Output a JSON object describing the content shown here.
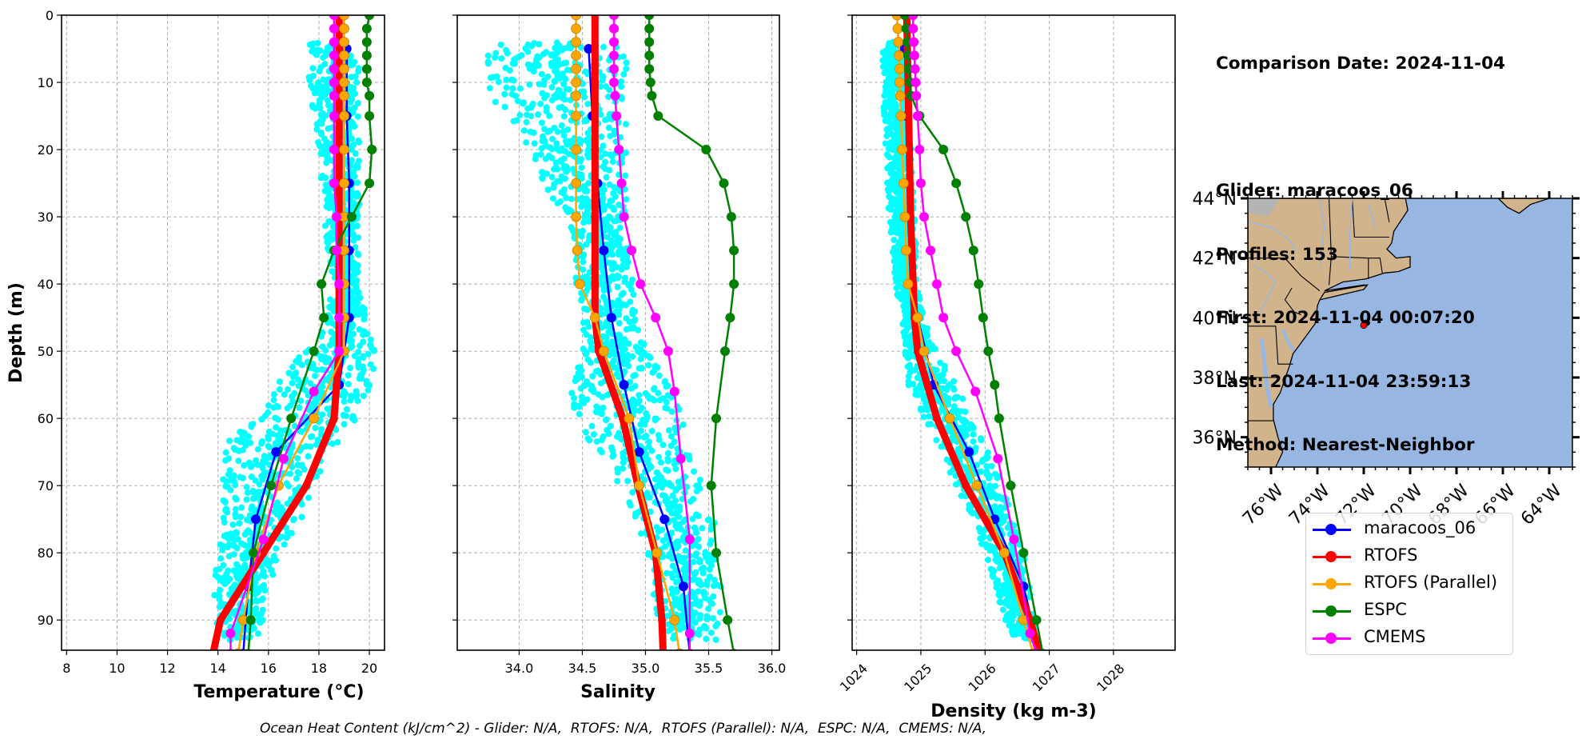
{
  "info_panel": {
    "lines": [
      "Comparison Date: 2024-11-04",
      "",
      "Glider: maracoos_06",
      "Profiles: 153",
      "First: 2024-11-04 00:07:20",
      "Last: 2024-11-04 23:59:13",
      "Method: Nearest-Neighbor"
    ]
  },
  "footer": {
    "ocean_heat_content": "Ocean Heat Content (kJ/cm^2) - Glider: N/A,  RTOFS: N/A,  RTOFS (Parallel): N/A,  ESPC: N/A,  CMEMS: N/A,"
  },
  "colors": {
    "glider_scatter": "#00ffff",
    "maracoos_06": "#0000ff",
    "RTOFS": "#ff0000",
    "RTOFS (Parallel)": "#ffa500",
    "ESPC": "#008000",
    "CMEMS": "#ff00ff",
    "land": "#d2b48c",
    "ocean": "#97b6e1",
    "lakes_rivers": "#97b6e1",
    "grid": "#b0b0b0"
  },
  "legend": {
    "placement": "below-map",
    "entries": [
      "maracoos_06",
      "RTOFS",
      "RTOFS (Parallel)",
      "ESPC",
      "CMEMS"
    ]
  },
  "chart_data": [
    {
      "type": "line",
      "title": "",
      "xlabel": "Temperature (°C)",
      "ylabel": "Depth (m)",
      "xlim": [
        7.8,
        20.6
      ],
      "ylim": [
        94.5,
        0
      ],
      "xticks": [
        8,
        10,
        12,
        14,
        16,
        18,
        20
      ],
      "yticks": [
        0,
        10,
        20,
        30,
        40,
        50,
        60,
        70,
        80,
        90
      ],
      "grid": true,
      "glider_scatter_envelope": {
        "depth": [
          4,
          10,
          15,
          20,
          30,
          40,
          47,
          50,
          55,
          60,
          62,
          65,
          70,
          75,
          80,
          85,
          90,
          93
        ],
        "min": [
          17.6,
          17.6,
          17.8,
          18.0,
          18.2,
          18.5,
          18.2,
          17.4,
          16.3,
          15.8,
          14.6,
          14.2,
          14.2,
          14.1,
          14.0,
          13.8,
          13.9,
          14.2
        ],
        "max": [
          19.6,
          19.6,
          19.6,
          19.6,
          19.6,
          19.6,
          20.0,
          20.2,
          20.2,
          19.5,
          19.0,
          18.5,
          17.8,
          17.3,
          16.5,
          16.0,
          15.8,
          15.6
        ]
      },
      "series": [
        {
          "name": "maracoos_06",
          "depth": [
            5,
            15,
            25,
            35,
            45,
            55,
            65,
            75,
            85,
            95
          ],
          "values": [
            19.1,
            19.1,
            19.2,
            19.2,
            19.2,
            18.8,
            16.3,
            15.5,
            15.2,
            15.0
          ]
        },
        {
          "name": "RTOFS",
          "depth": [
            0,
            2,
            4,
            6,
            8,
            10,
            12,
            15,
            20,
            25,
            30,
            35,
            40,
            45,
            50,
            55,
            60,
            70,
            80,
            90,
            95
          ],
          "values": [
            18.8,
            18.8,
            18.8,
            18.8,
            18.8,
            18.8,
            18.8,
            18.8,
            18.8,
            18.8,
            18.8,
            18.8,
            18.8,
            18.8,
            18.8,
            18.7,
            18.6,
            17.5,
            15.8,
            14.1,
            13.8
          ]
        },
        {
          "name": "RTOFS (Parallel)",
          "depth": [
            0,
            2,
            4,
            6,
            8,
            10,
            12,
            15,
            20,
            25,
            30,
            35,
            40,
            45,
            50,
            60,
            70,
            80,
            90,
            95
          ],
          "values": [
            19.0,
            19.0,
            19.0,
            19.0,
            19.0,
            19.0,
            19.0,
            19.0,
            19.0,
            19.0,
            19.0,
            19.0,
            19.0,
            19.0,
            19.0,
            17.8,
            16.4,
            15.5,
            15.0,
            14.8
          ]
        },
        {
          "name": "ESPC",
          "depth": [
            0,
            2,
            4,
            6,
            8,
            10,
            12,
            15,
            20,
            25,
            30,
            35,
            40,
            45,
            50,
            60,
            70,
            80,
            90,
            95
          ],
          "values": [
            20.0,
            19.9,
            19.9,
            19.9,
            19.9,
            19.9,
            20.0,
            20.0,
            20.1,
            20.0,
            19.3,
            18.6,
            18.1,
            18.2,
            17.8,
            16.9,
            16.1,
            15.4,
            15.3,
            15.2
          ]
        },
        {
          "name": "CMEMS",
          "depth": [
            0,
            2,
            4,
            6,
            8,
            10,
            12,
            15,
            20,
            25,
            30,
            35,
            40,
            45,
            50,
            56,
            66,
            78,
            92,
            95
          ],
          "values": [
            18.6,
            18.6,
            18.6,
            18.6,
            18.6,
            18.6,
            18.6,
            18.6,
            18.6,
            18.6,
            18.7,
            18.7,
            18.8,
            18.8,
            18.8,
            17.8,
            16.6,
            15.8,
            14.5,
            14.5
          ]
        }
      ]
    },
    {
      "type": "line",
      "title": "",
      "xlabel": "Salinity",
      "ylabel": "",
      "xlim": [
        33.51,
        36.06
      ],
      "ylim": [
        94.5,
        0
      ],
      "xticks": [
        34.0,
        34.5,
        35.0,
        35.5,
        36.0
      ],
      "yticks": [
        0,
        10,
        20,
        30,
        40,
        50,
        60,
        70,
        80,
        90
      ],
      "grid": true,
      "glider_scatter_envelope": {
        "depth": [
          4,
          10,
          15,
          20,
          25,
          30,
          40,
          50,
          55,
          60,
          65,
          70,
          75,
          80,
          85,
          90,
          93
        ],
        "min": [
          33.75,
          33.75,
          33.85,
          34.1,
          34.15,
          34.4,
          34.45,
          34.5,
          34.4,
          34.45,
          34.6,
          34.8,
          34.9,
          35.0,
          35.05,
          35.1,
          35.1
        ],
        "max": [
          34.85,
          34.85,
          34.85,
          34.85,
          34.85,
          34.85,
          34.9,
          35.0,
          35.2,
          35.3,
          35.35,
          35.45,
          35.55,
          35.55,
          35.6,
          35.6,
          35.6
        ]
      },
      "series": [
        {
          "name": "maracoos_06",
          "depth": [
            5,
            15,
            25,
            35,
            45,
            55,
            65,
            75,
            85,
            95
          ],
          "values": [
            34.55,
            34.58,
            34.62,
            34.67,
            34.73,
            34.83,
            34.95,
            35.15,
            35.3,
            35.35
          ]
        },
        {
          "name": "RTOFS",
          "depth": [
            0,
            10,
            20,
            30,
            40,
            45,
            50,
            60,
            70,
            80,
            90,
            95
          ],
          "values": [
            34.6,
            34.6,
            34.6,
            34.6,
            34.6,
            34.6,
            34.63,
            34.82,
            34.94,
            35.08,
            35.13,
            35.14
          ]
        },
        {
          "name": "RTOFS (Parallel)",
          "depth": [
            0,
            2,
            4,
            6,
            8,
            10,
            12,
            15,
            20,
            25,
            30,
            35,
            40,
            45,
            50,
            60,
            70,
            80,
            90,
            95
          ],
          "values": [
            34.45,
            34.45,
            34.45,
            34.45,
            34.45,
            34.45,
            34.45,
            34.45,
            34.45,
            34.45,
            34.45,
            34.46,
            34.48,
            34.6,
            34.67,
            34.87,
            34.95,
            35.09,
            35.23,
            35.27
          ]
        },
        {
          "name": "ESPC",
          "depth": [
            0,
            2,
            4,
            6,
            8,
            10,
            12,
            15,
            20,
            25,
            30,
            35,
            40,
            45,
            50,
            60,
            70,
            80,
            90,
            95
          ],
          "values": [
            35.03,
            35.03,
            35.03,
            35.03,
            35.03,
            35.04,
            35.05,
            35.1,
            35.48,
            35.62,
            35.68,
            35.7,
            35.7,
            35.67,
            35.63,
            35.56,
            35.52,
            35.56,
            35.65,
            35.7
          ]
        },
        {
          "name": "CMEMS",
          "depth": [
            0,
            2,
            4,
            6,
            8,
            10,
            12,
            15,
            20,
            25,
            30,
            35,
            40,
            45,
            50,
            56,
            66,
            78,
            92,
            95
          ],
          "values": [
            34.75,
            34.75,
            34.75,
            34.75,
            34.75,
            34.75,
            34.76,
            34.77,
            34.79,
            34.81,
            34.83,
            34.89,
            34.96,
            35.08,
            35.18,
            35.23,
            35.28,
            35.35,
            35.35,
            35.35
          ]
        }
      ]
    },
    {
      "type": "line",
      "title": "",
      "xlabel": "Density (kg m-3)",
      "ylabel": "",
      "xlim": [
        1023.93,
        1028.96
      ],
      "ylim": [
        94.5,
        0
      ],
      "xticks": [
        1024,
        1025,
        1026,
        1027,
        1028
      ],
      "yticks": [
        0,
        10,
        20,
        30,
        40,
        50,
        60,
        70,
        80,
        90
      ],
      "grid": true,
      "glider_scatter_envelope": {
        "depth": [
          4,
          10,
          20,
          30,
          40,
          45,
          50,
          55,
          60,
          65,
          70,
          75,
          80,
          85,
          90,
          93
        ],
        "min": [
          1024.4,
          1024.4,
          1024.45,
          1024.5,
          1024.6,
          1024.7,
          1024.75,
          1024.8,
          1025.05,
          1025.3,
          1025.55,
          1025.8,
          1026.0,
          1026.15,
          1026.3,
          1026.45
        ],
        "max": [
          1024.7,
          1024.75,
          1024.85,
          1024.9,
          1024.95,
          1025.05,
          1025.25,
          1025.55,
          1025.8,
          1026.05,
          1026.3,
          1026.45,
          1026.6,
          1026.7,
          1026.75,
          1026.8
        ]
      },
      "series": [
        {
          "name": "maracoos_06",
          "depth": [
            5,
            15,
            25,
            35,
            45,
            55,
            65,
            75,
            85,
            95
          ],
          "values": [
            1024.75,
            1024.78,
            1024.8,
            1024.82,
            1024.95,
            1025.2,
            1025.75,
            1026.15,
            1026.6,
            1026.85
          ]
        },
        {
          "name": "RTOFS",
          "depth": [
            0,
            10,
            20,
            30,
            40,
            45,
            50,
            60,
            70,
            80,
            90,
            95
          ],
          "values": [
            1024.78,
            1024.8,
            1024.82,
            1024.84,
            1024.88,
            1024.9,
            1024.95,
            1025.25,
            1025.7,
            1026.3,
            1026.7,
            1026.85
          ]
        },
        {
          "name": "RTOFS (Parallel)",
          "depth": [
            0,
            2,
            4,
            6,
            8,
            10,
            12,
            15,
            20,
            25,
            30,
            35,
            40,
            45,
            50,
            60,
            70,
            80,
            90,
            95
          ],
          "values": [
            1024.63,
            1024.64,
            1024.65,
            1024.66,
            1024.67,
            1024.67,
            1024.68,
            1024.69,
            1024.71,
            1024.73,
            1024.75,
            1024.77,
            1024.8,
            1024.95,
            1025.05,
            1025.45,
            1025.87,
            1026.3,
            1026.6,
            1026.75
          ]
        },
        {
          "name": "ESPC",
          "depth": [
            0,
            2,
            4,
            6,
            8,
            10,
            12,
            15,
            20,
            25,
            30,
            35,
            40,
            45,
            50,
            55,
            60,
            70,
            80,
            90,
            95
          ],
          "values": [
            1024.75,
            1024.77,
            1024.79,
            1024.8,
            1024.81,
            1024.83,
            1024.85,
            1024.98,
            1025.35,
            1025.55,
            1025.7,
            1025.82,
            1025.9,
            1025.97,
            1026.05,
            1026.15,
            1026.22,
            1026.4,
            1026.6,
            1026.8,
            1026.9
          ]
        },
        {
          "name": "CMEMS",
          "depth": [
            0,
            2,
            4,
            6,
            8,
            10,
            12,
            15,
            20,
            25,
            30,
            35,
            40,
            45,
            50,
            56,
            66,
            78,
            92,
            95
          ],
          "values": [
            1024.88,
            1024.88,
            1024.89,
            1024.9,
            1024.91,
            1024.92,
            1024.93,
            1024.95,
            1024.98,
            1025.0,
            1025.05,
            1025.15,
            1025.25,
            1025.35,
            1025.55,
            1025.85,
            1026.2,
            1026.45,
            1026.7,
            1026.8
          ]
        }
      ]
    }
  ],
  "map": {
    "lat_range": [
      35,
      44
    ],
    "lon_range": [
      -77,
      -63
    ],
    "lat_ticks": [
      36,
      38,
      40,
      42,
      44
    ],
    "lat_tick_labels": [
      "36°N",
      "38°N",
      "40°N",
      "42°N",
      "44°N"
    ],
    "lon_ticks": [
      -76,
      -74,
      -72,
      -70,
      -68,
      -66,
      -64
    ],
    "lon_tick_labels": [
      "76°W",
      "74°W",
      "72°W",
      "70°W",
      "68°W",
      "66°W",
      "64°W"
    ],
    "glider_track_marker": {
      "lat": 39.75,
      "lon": -72.0
    }
  }
}
